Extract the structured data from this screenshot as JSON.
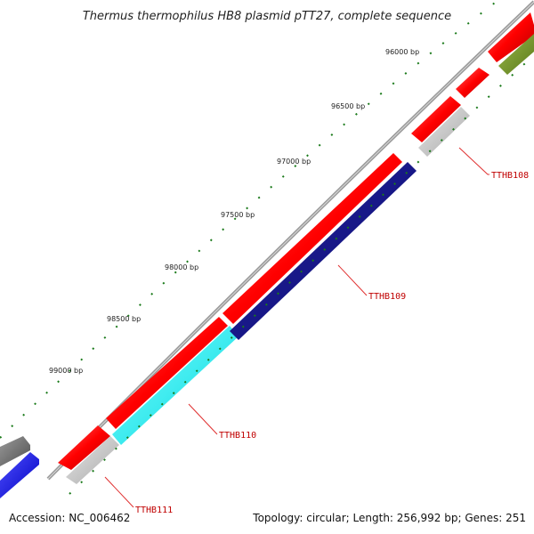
{
  "title": "Thermus thermophilus HB8 plasmid pTT27, complete sequence",
  "footer": {
    "accession": "Accession: NC_006462",
    "summary": "Topology: circular; Length: 256,992 bp; Genes: 251"
  },
  "ruler": [
    {
      "label": "96000 bp"
    },
    {
      "label": "96500 bp"
    },
    {
      "label": "97000 bp"
    },
    {
      "label": "97500 bp"
    },
    {
      "label": "98000 bp"
    },
    {
      "label": "98500 bp"
    },
    {
      "label": "99000 bp"
    }
  ],
  "gene_labels": [
    {
      "id": "TTHB108",
      "label": "TTHB108"
    },
    {
      "id": "TTHB109",
      "label": "TTHB109"
    },
    {
      "id": "TTHB110",
      "label": "TTHB110"
    },
    {
      "id": "TTHB111",
      "label": "TTHB111"
    }
  ],
  "colors": {
    "forward_cds": "#ff0000",
    "reverse_cds_1": "#000080",
    "reverse_cds_2": "#00ffff",
    "reverse_other": "#c0c0c0",
    "green_feature": "#6b8e23",
    "grey_feature": "#707070",
    "blue_feature": "#0000ff",
    "backbone": "#8a8a8a",
    "tick": "#1a7a1a",
    "label": "#c00000"
  }
}
